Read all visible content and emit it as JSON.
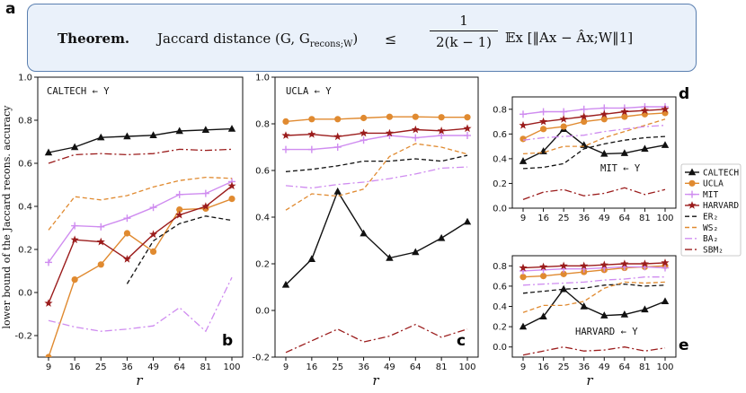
{
  "theorem": {
    "label": "a",
    "title": "Theorem.",
    "lhs": "Jaccard distance (G, G",
    "lhs_sub": "recons;W",
    "lhs_close": ")",
    "relation": "≤",
    "frac_num": "1",
    "frac_den": "2(k − 1)",
    "rhs": "𝔼x [‖Ax − Âx;W‖1]"
  },
  "colors": {
    "caltech": "#111111",
    "ucla": "#e08a30",
    "mit": "#cf8cf0",
    "harvard": "#9b1c1c",
    "er2": "#111111",
    "ws2": "#e08a30",
    "ba2": "#cf8cf0",
    "sbm2": "#9b1c1c"
  },
  "legend": {
    "items": [
      {
        "key": "caltech",
        "label": "CALTECH",
        "marker": "triangle",
        "dash": ""
      },
      {
        "key": "ucla",
        "label": "UCLA",
        "marker": "circle",
        "dash": ""
      },
      {
        "key": "mit",
        "label": "MIT",
        "marker": "plus",
        "dash": ""
      },
      {
        "key": "harvard",
        "label": "HARVARD",
        "marker": "star",
        "dash": ""
      },
      {
        "key": "er2",
        "label": "ER₂",
        "marker": "none",
        "dash": "5,3"
      },
      {
        "key": "ws2",
        "label": "WS₂",
        "marker": "none",
        "dash": "5,3"
      },
      {
        "key": "ba2",
        "label": "BA₂",
        "marker": "none",
        "dash": "8,3,2,3"
      },
      {
        "key": "sbm2",
        "label": "SBM₂",
        "marker": "none",
        "dash": "8,3,2,3"
      }
    ]
  },
  "y_axis_label": "lower bound of the Jaccard recons. accuracy",
  "x_axis_symbol": "r",
  "chart_data": [
    {
      "id": "b",
      "type": "line",
      "panel_label": "CALTECH ← Y",
      "xlabel": "r",
      "ylabel": "lower bound of the Jaccard recons. accuracy",
      "x": [
        9,
        16,
        25,
        36,
        49,
        64,
        81,
        100
      ],
      "ylim": [
        -0.3,
        1.0
      ],
      "yticks": [
        -0.2,
        0.0,
        0.2,
        0.4,
        0.6,
        0.8,
        1.0
      ],
      "series": [
        {
          "name": "CALTECH",
          "values": [
            0.65,
            0.675,
            0.72,
            0.725,
            0.73,
            0.75,
            0.755,
            0.76
          ]
        },
        {
          "name": "UCLA",
          "values": [
            -0.3,
            0.06,
            0.13,
            0.275,
            0.19,
            0.385,
            0.39,
            0.435
          ]
        },
        {
          "name": "MIT",
          "values": [
            0.14,
            0.31,
            0.305,
            0.345,
            0.395,
            0.455,
            0.46,
            0.515
          ]
        },
        {
          "name": "HARVARD",
          "values": [
            -0.05,
            0.245,
            0.235,
            0.155,
            0.27,
            0.36,
            0.4,
            0.495
          ]
        },
        {
          "name": "ER₂",
          "values": [
            null,
            null,
            null,
            0.04,
            0.24,
            0.32,
            0.355,
            0.335
          ]
        },
        {
          "name": "WS₂",
          "values": [
            0.29,
            0.445,
            0.43,
            0.45,
            0.49,
            0.52,
            0.535,
            0.53
          ]
        },
        {
          "name": "BA₂",
          "values": [
            -0.13,
            -0.16,
            -0.18,
            -0.17,
            -0.155,
            -0.07,
            -0.18,
            0.07
          ]
        },
        {
          "name": "SBM₂",
          "values": [
            0.6,
            0.64,
            0.645,
            0.64,
            0.645,
            0.665,
            0.66,
            0.665
          ]
        }
      ]
    },
    {
      "id": "c",
      "type": "line",
      "panel_label": "UCLA ← Y",
      "xlabel": "r",
      "ylabel": "",
      "x": [
        9,
        16,
        25,
        36,
        49,
        64,
        81,
        100
      ],
      "ylim": [
        -0.2,
        1.0
      ],
      "yticks": [
        -0.2,
        0.0,
        0.2,
        0.4,
        0.6,
        0.8,
        1.0
      ],
      "series": [
        {
          "name": "CALTECH",
          "values": [
            0.11,
            0.22,
            0.51,
            0.33,
            0.225,
            0.25,
            0.31,
            0.38
          ]
        },
        {
          "name": "UCLA",
          "values": [
            0.81,
            0.82,
            0.82,
            0.825,
            0.83,
            0.83,
            0.828,
            0.828
          ]
        },
        {
          "name": "MIT",
          "values": [
            0.69,
            0.69,
            0.7,
            0.73,
            0.75,
            0.74,
            0.75,
            0.75
          ]
        },
        {
          "name": "HARVARD",
          "values": [
            0.75,
            0.755,
            0.745,
            0.76,
            0.76,
            0.775,
            0.77,
            0.78
          ]
        },
        {
          "name": "ER₂",
          "values": [
            0.595,
            0.605,
            0.62,
            0.64,
            0.64,
            0.65,
            0.64,
            0.665
          ]
        },
        {
          "name": "WS₂",
          "values": [
            0.43,
            0.5,
            0.49,
            0.52,
            0.66,
            0.715,
            0.7,
            0.67
          ]
        },
        {
          "name": "BA₂",
          "values": [
            0.535,
            0.525,
            0.54,
            0.55,
            0.565,
            0.585,
            0.61,
            0.615
          ]
        },
        {
          "name": "SBM₂",
          "values": [
            -0.18,
            -0.13,
            -0.08,
            -0.135,
            -0.11,
            -0.06,
            -0.115,
            -0.08
          ]
        }
      ]
    },
    {
      "id": "d",
      "type": "line",
      "panel_label": "MIT ← Y",
      "xlabel": "",
      "ylabel": "",
      "x": [
        9,
        16,
        25,
        36,
        49,
        64,
        81,
        100
      ],
      "ylim": [
        0.0,
        0.9
      ],
      "yticks": [
        0.0,
        0.2,
        0.4,
        0.6,
        0.8
      ],
      "series": [
        {
          "name": "CALTECH",
          "values": [
            0.38,
            0.46,
            0.64,
            0.51,
            0.44,
            0.445,
            0.48,
            0.51
          ]
        },
        {
          "name": "UCLA",
          "values": [
            0.56,
            0.64,
            0.66,
            0.7,
            0.72,
            0.74,
            0.76,
            0.77
          ]
        },
        {
          "name": "MIT",
          "values": [
            0.76,
            0.78,
            0.78,
            0.8,
            0.81,
            0.81,
            0.82,
            0.82
          ]
        },
        {
          "name": "HARVARD",
          "values": [
            0.67,
            0.7,
            0.72,
            0.74,
            0.76,
            0.78,
            0.79,
            0.8
          ]
        },
        {
          "name": "ER₂",
          "values": [
            0.32,
            0.33,
            0.36,
            0.48,
            0.52,
            0.55,
            0.57,
            0.58
          ]
        },
        {
          "name": "WS₂",
          "values": [
            0.44,
            0.45,
            0.5,
            0.5,
            0.57,
            0.62,
            0.67,
            0.72
          ]
        },
        {
          "name": "BA₂",
          "values": [
            0.55,
            0.57,
            0.58,
            0.59,
            0.62,
            0.64,
            0.66,
            0.67
          ]
        },
        {
          "name": "SBM₂",
          "values": [
            0.07,
            0.13,
            0.15,
            0.1,
            0.12,
            0.165,
            0.11,
            0.15
          ]
        }
      ]
    },
    {
      "id": "e",
      "type": "line",
      "panel_label": "HARVARD ← Y",
      "xlabel": "r",
      "ylabel": "",
      "x": [
        9,
        16,
        25,
        36,
        49,
        64,
        81,
        100
      ],
      "ylim": [
        -0.1,
        0.9
      ],
      "yticks": [
        0.0,
        0.2,
        0.4,
        0.6,
        0.8
      ],
      "series": [
        {
          "name": "CALTECH",
          "values": [
            0.2,
            0.3,
            0.57,
            0.4,
            0.31,
            0.32,
            0.37,
            0.45
          ]
        },
        {
          "name": "UCLA",
          "values": [
            0.69,
            0.7,
            0.72,
            0.74,
            0.76,
            0.78,
            0.79,
            0.8
          ]
        },
        {
          "name": "MIT",
          "values": [
            0.75,
            0.76,
            0.77,
            0.77,
            0.78,
            0.79,
            0.79,
            0.78
          ]
        },
        {
          "name": "HARVARD",
          "values": [
            0.78,
            0.79,
            0.8,
            0.8,
            0.81,
            0.82,
            0.82,
            0.83
          ]
        },
        {
          "name": "ER₂",
          "values": [
            0.53,
            0.55,
            0.57,
            0.58,
            0.61,
            0.62,
            0.6,
            0.61
          ]
        },
        {
          "name": "WS₂",
          "values": [
            0.34,
            0.41,
            0.41,
            0.45,
            0.58,
            0.64,
            0.63,
            0.64
          ]
        },
        {
          "name": "BA₂",
          "values": [
            0.61,
            0.62,
            0.63,
            0.64,
            0.66,
            0.67,
            0.69,
            0.69
          ]
        },
        {
          "name": "SBM₂",
          "values": [
            -0.08,
            -0.04,
            0.0,
            -0.04,
            -0.03,
            0.0,
            -0.04,
            -0.01
          ]
        }
      ]
    }
  ]
}
